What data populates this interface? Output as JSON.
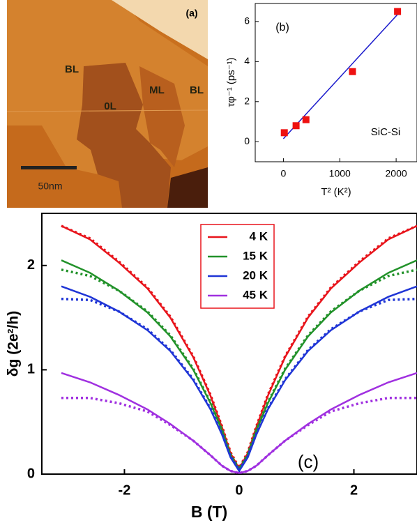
{
  "panel_a": {
    "label": "(a)",
    "regions": [
      "BL",
      "0L",
      "ML",
      "BL"
    ],
    "scale_bar": "50nm"
  },
  "chart_data": [
    {
      "type": "scatter",
      "label": "(b)",
      "annotation": "SiC-Si",
      "x_label": "T² (K²)",
      "y_label": "τφ⁻¹ (ps⁻¹)",
      "x": [
        16,
        225,
        400,
        1225,
        2025
      ],
      "values": [
        0.45,
        0.8,
        1.1,
        3.5,
        6.5
      ],
      "color": "#ee1111",
      "fit": {
        "x": [
          0,
          2025
        ],
        "values": [
          0.15,
          6.35
        ],
        "color": "#1a1acc"
      },
      "xlim": [
        -500,
        2370
      ],
      "ylim": [
        -1,
        6.9
      ],
      "xticks": [
        0,
        1000,
        2000
      ],
      "yticks": [
        0,
        2,
        4,
        6
      ]
    },
    {
      "type": "line",
      "label": "(c)",
      "x_label": "B (T)",
      "y_label": "δg (2e²/h)",
      "x": [
        -3.1,
        -2.6,
        -2.1,
        -1.6,
        -1.2,
        -0.8,
        -0.5,
        -0.3,
        -0.15,
        0,
        0.15,
        0.3,
        0.5,
        0.8,
        1.2,
        1.6,
        2.1,
        2.6,
        3.1
      ],
      "series": [
        {
          "name": "4 K",
          "color": "#e8141b",
          "values": [
            2.38,
            2.25,
            2.03,
            1.78,
            1.5,
            1.12,
            0.75,
            0.45,
            0.2,
            0.05,
            0.2,
            0.45,
            0.75,
            1.12,
            1.5,
            1.78,
            2.03,
            2.25,
            2.38
          ],
          "fit_values": [
            2.38,
            2.26,
            2.04,
            1.79,
            1.51,
            1.13,
            0.76,
            0.46,
            0.21,
            0.06,
            0.21,
            0.46,
            0.76,
            1.13,
            1.51,
            1.79,
            2.04,
            2.26,
            2.38
          ]
        },
        {
          "name": "15 K",
          "color": "#22922a",
          "values": [
            2.05,
            1.93,
            1.76,
            1.55,
            1.32,
            1.0,
            0.68,
            0.42,
            0.18,
            0.04,
            0.18,
            0.42,
            0.68,
            1.0,
            1.32,
            1.55,
            1.76,
            1.93,
            2.05
          ],
          "fit_values": [
            1.96,
            1.9,
            1.76,
            1.56,
            1.33,
            1.01,
            0.69,
            0.43,
            0.19,
            0.05,
            0.19,
            0.43,
            0.69,
            1.01,
            1.33,
            1.56,
            1.76,
            1.9,
            1.96
          ]
        },
        {
          "name": "20 K",
          "color": "#1f35d6",
          "values": [
            1.8,
            1.7,
            1.56,
            1.38,
            1.18,
            0.9,
            0.62,
            0.38,
            0.16,
            0.03,
            0.16,
            0.38,
            0.62,
            0.9,
            1.18,
            1.38,
            1.56,
            1.7,
            1.8
          ],
          "fit_values": [
            1.68,
            1.67,
            1.56,
            1.39,
            1.19,
            0.91,
            0.63,
            0.39,
            0.17,
            0.04,
            0.17,
            0.39,
            0.63,
            0.91,
            1.19,
            1.39,
            1.56,
            1.67,
            1.68
          ]
        },
        {
          "name": "45 K",
          "color": "#a030e0",
          "values": [
            0.97,
            0.88,
            0.76,
            0.62,
            0.48,
            0.32,
            0.18,
            0.08,
            0.03,
            0.01,
            0.03,
            0.08,
            0.18,
            0.32,
            0.48,
            0.62,
            0.76,
            0.88,
            0.97
          ],
          "fit_values": [
            0.73,
            0.73,
            0.68,
            0.6,
            0.47,
            0.32,
            0.18,
            0.08,
            0.03,
            0.01,
            0.03,
            0.08,
            0.18,
            0.32,
            0.47,
            0.6,
            0.68,
            0.73,
            0.73
          ]
        }
      ],
      "xlim": [
        -3.44,
        3.1
      ],
      "ylim": [
        0,
        2.5
      ],
      "xticks": [
        -2,
        0,
        2
      ],
      "yticks": [
        0,
        1,
        2
      ]
    }
  ]
}
